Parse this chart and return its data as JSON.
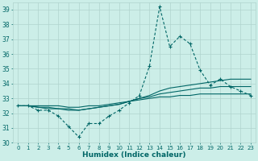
{
  "xlabel": "Humidex (Indice chaleur)",
  "background_color": "#cceee8",
  "grid_color": "#b0d4ce",
  "line_color": "#006666",
  "x": [
    0,
    1,
    2,
    3,
    4,
    5,
    6,
    7,
    8,
    9,
    10,
    11,
    12,
    13,
    14,
    15,
    16,
    17,
    18,
    19,
    20,
    21,
    22,
    23
  ],
  "y_main": [
    32.5,
    32.5,
    32.2,
    32.2,
    31.8,
    31.1,
    30.4,
    31.3,
    31.3,
    31.8,
    32.2,
    32.7,
    33.2,
    35.2,
    39.2,
    36.5,
    37.2,
    36.7,
    34.9,
    33.9,
    34.3,
    33.8,
    33.5,
    33.2
  ],
  "y_trend1": [
    32.5,
    32.5,
    32.4,
    32.3,
    32.3,
    32.2,
    32.2,
    32.3,
    32.4,
    32.5,
    32.6,
    32.8,
    33.0,
    33.2,
    33.5,
    33.7,
    33.8,
    33.9,
    34.0,
    34.1,
    34.2,
    34.3,
    34.3,
    34.3
  ],
  "y_trend2": [
    32.5,
    32.5,
    32.4,
    32.4,
    32.3,
    32.3,
    32.2,
    32.3,
    32.4,
    32.5,
    32.6,
    32.8,
    33.0,
    33.1,
    33.3,
    33.4,
    33.5,
    33.6,
    33.7,
    33.7,
    33.8,
    33.8,
    33.8,
    33.8
  ],
  "y_trend3": [
    32.5,
    32.5,
    32.5,
    32.5,
    32.5,
    32.4,
    32.4,
    32.5,
    32.5,
    32.6,
    32.7,
    32.8,
    32.9,
    33.0,
    33.1,
    33.1,
    33.2,
    33.2,
    33.3,
    33.3,
    33.3,
    33.3,
    33.3,
    33.3
  ],
  "ylim": [
    30,
    39.5
  ],
  "xlim": [
    -0.5,
    23.5
  ],
  "yticks": [
    30,
    31,
    32,
    33,
    34,
    35,
    36,
    37,
    38,
    39
  ],
  "xticks": [
    0,
    1,
    2,
    3,
    4,
    5,
    6,
    7,
    8,
    9,
    10,
    11,
    12,
    13,
    14,
    15,
    16,
    17,
    18,
    19,
    20,
    21,
    22,
    23
  ]
}
